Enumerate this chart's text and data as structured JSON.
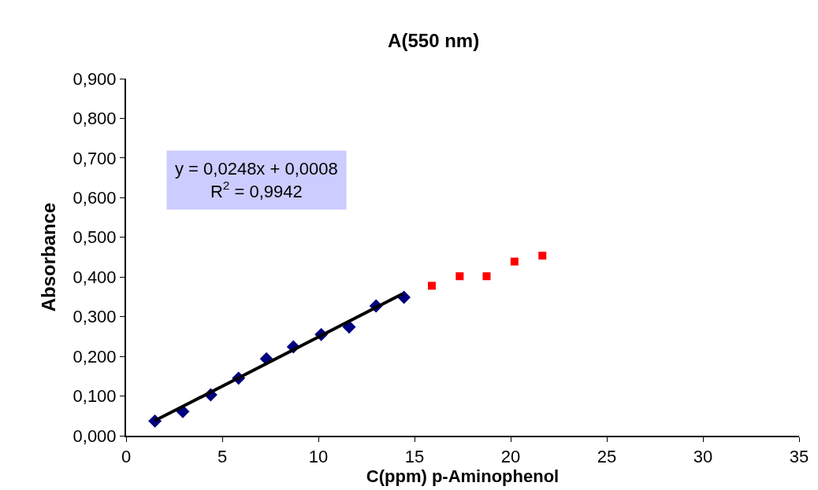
{
  "chart_data": {
    "type": "scatter",
    "title": "A(550 nm)",
    "xlabel": "C(ppm) p-Aminophenol",
    "ylabel": "Absorbance",
    "series": [
      {
        "marker": "diamond",
        "color": "#000080",
        "x": [
          1.5,
          2.95,
          4.4,
          5.85,
          7.3,
          8.7,
          10.15,
          11.6,
          13.0,
          14.45
        ],
        "values": [
          0.037,
          0.061,
          0.103,
          0.145,
          0.194,
          0.224,
          0.255,
          0.274,
          0.327,
          0.349
        ]
      },
      {
        "marker": "square",
        "color": "#ff0000",
        "x": [
          15.9,
          17.35,
          18.75,
          20.2,
          21.65
        ],
        "values": [
          0.378,
          0.402,
          0.402,
          0.439,
          0.454
        ]
      },
      {
        "type": "line",
        "marker": "none",
        "line_style": "solid",
        "color": "#000000",
        "x": [
          1.5,
          14.4
        ],
        "values": [
          0.038,
          0.358
        ]
      }
    ],
    "annotations": [
      "y = 0,0248x + 0,0008\nR$^{2}$ = 0,9942"
    ],
    "xlim": [
      0,
      35
    ],
    "xticks": [
      0,
      5,
      10,
      15,
      20,
      25,
      30,
      35
    ],
    "ylim": [
      0,
      0.9
    ],
    "yticks": [
      {
        "value": 0,
        "label": "0,000"
      },
      {
        "value": 0.1,
        "label": "0,100"
      },
      {
        "value": 0.2,
        "label": "0,200"
      },
      {
        "value": 0.3,
        "label": "0,300"
      },
      {
        "value": 0.4,
        "label": "0,400"
      },
      {
        "value": 0.5,
        "label": "0,500"
      },
      {
        "value": 0.6,
        "label": "0,600"
      },
      {
        "value": 0.7,
        "label": "0,700"
      },
      {
        "value": 0.8,
        "label": "0,800"
      },
      {
        "value": 0.9,
        "label": "0,900"
      }
    ]
  }
}
